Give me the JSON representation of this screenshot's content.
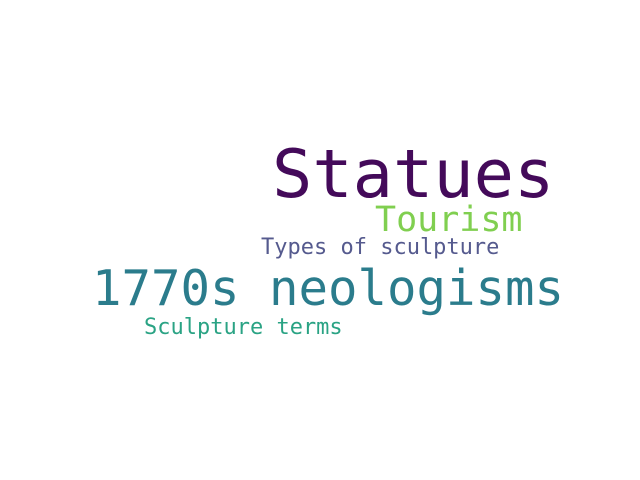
{
  "word_cloud": {
    "words": [
      {
        "id": "statues",
        "text": "Statues",
        "color": "#440a5a"
      },
      {
        "id": "tourism",
        "text": "Tourism",
        "color": "#80cf50"
      },
      {
        "id": "types",
        "text": "Types of sculpture",
        "color": "#555a8e"
      },
      {
        "id": "neologisms",
        "text": "1770s neologisms",
        "color": "#2b7c8c"
      },
      {
        "id": "terms",
        "text": "Sculpture terms",
        "color": "#2aa384"
      }
    ]
  }
}
